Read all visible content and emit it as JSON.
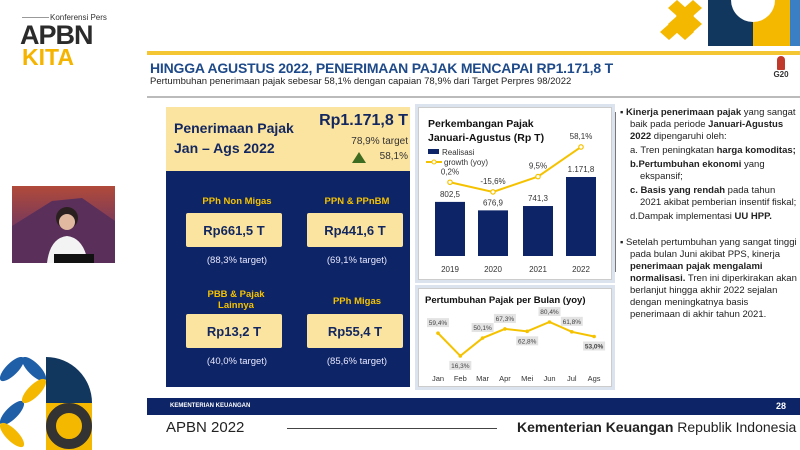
{
  "logo": {
    "small": "Konferensi Pers",
    "line1": "APBN",
    "line2": "KITA"
  },
  "header": {
    "title": "HINGGA AGUSTUS 2022, PENERIMAAN PAJAK MENCAPAI RP1.171,8 T",
    "subtitle": "Pertumbuhan penerimaan pajak sebesar 58,1% dengan capaian 78,9% dari Target Perpres 98/2022",
    "g20": "G20"
  },
  "summary": {
    "title_l1": "Penerimaan Pajak",
    "title_l2": "Jan – Ags 2022",
    "value": "Rp1.171,8 T",
    "target": "78,9% target",
    "growth": "58,1%",
    "growth_icon": "triangle-up",
    "items": [
      {
        "name": "PPh Non Migas",
        "value": "Rp661,5 T",
        "target": "(88,3% target)"
      },
      {
        "name": "PPN & PPnBM",
        "value": "Rp441,6 T",
        "target": "(69,1% target)"
      },
      {
        "name": "PBB & Pajak Lainnya",
        "value": "Rp13,2 T",
        "target": "(40,0% target)"
      },
      {
        "name": "PPh Migas",
        "value": "Rp55,4 T",
        "target": "(85,6% target)"
      }
    ]
  },
  "chart_data": [
    {
      "type": "bar",
      "title": "Perkembangan Pajak Januari-Agustus (Rp T)",
      "categories": [
        "2019",
        "2020",
        "2021",
        "2022"
      ],
      "series": [
        {
          "name": "Realisasi",
          "type": "bar",
          "values": [
            802.5,
            676.9,
            741.3,
            1171.8
          ],
          "labels": [
            "802,5",
            "676,9",
            "741,3",
            "1.171,8"
          ],
          "color": "#0d2466"
        },
        {
          "name": "growth (yoy)",
          "type": "line",
          "values": [
            0.2,
            -15.6,
            9.5,
            58.1
          ],
          "labels": [
            "0,2%",
            "-15,6%",
            "9,5%",
            "58,1%"
          ],
          "color": "#f5c200"
        }
      ],
      "legend": "top-left",
      "grid": false
    },
    {
      "type": "line",
      "title": "Pertumbuhan Pajak per Bulan (yoy)",
      "categories": [
        "Jan",
        "Feb",
        "Mar",
        "Apr",
        "Mei",
        "Jun",
        "Jul",
        "Ags"
      ],
      "series": [
        {
          "values": [
            59.4,
            16.3,
            50.1,
            67.3,
            62.8,
            80.4,
            61.8,
            53.0
          ],
          "labels": [
            "59,4%",
            "16,3%",
            "50,1%",
            "67,3%",
            "62,8%",
            "80,4%",
            "61,8%",
            "53,0%"
          ],
          "color": "#f5c200"
        }
      ],
      "grid": false
    }
  ],
  "right": {
    "p1": [
      {
        "b": "Kinerja penerimaan pajak"
      },
      {
        "t": " yang sangat baik pada periode "
      },
      {
        "b": "Januari-Agustus 2022"
      },
      {
        "t": " dipengaruhi oleh:"
      }
    ],
    "list": [
      [
        {
          "t": "a. Tren peningkatan "
        },
        {
          "b": "harga komoditas;"
        }
      ],
      [
        {
          "b": "b.Pertumbuhan ekonomi"
        },
        {
          "t": " yang ekspansif;"
        }
      ],
      [
        {
          "b": "c. Basis yang rendah"
        },
        {
          "t": " pada tahun 2021 akibat pemberian insentif fiskal;"
        }
      ],
      [
        {
          "t": "d.Dampak implementasi "
        },
        {
          "b": "UU HPP."
        }
      ]
    ],
    "p2": [
      {
        "t": "Setelah pertumbuhan yang sangat tinggi pada bulan Juni akibat PPS, kinerja "
      },
      {
        "b": "penerimaan pajak mengalami normalisasi."
      },
      {
        "t": " Tren ini diperkirakan akan berlanjut hingga akhir 2022 sejalan dengan meningkatnya basis penerimaan di akhir tahun 2021."
      }
    ]
  },
  "footer": {
    "org": "KEMENTERIAN KEUANGAN",
    "page": "28"
  },
  "bottom": {
    "left": "APBN 2022",
    "right_bold": "Kementerian Keuangan",
    "right": " Republik Indonesia"
  },
  "colors": {
    "navy": "#0d2466",
    "yellow": "#f5c200",
    "cream": "#fbe3a0"
  }
}
